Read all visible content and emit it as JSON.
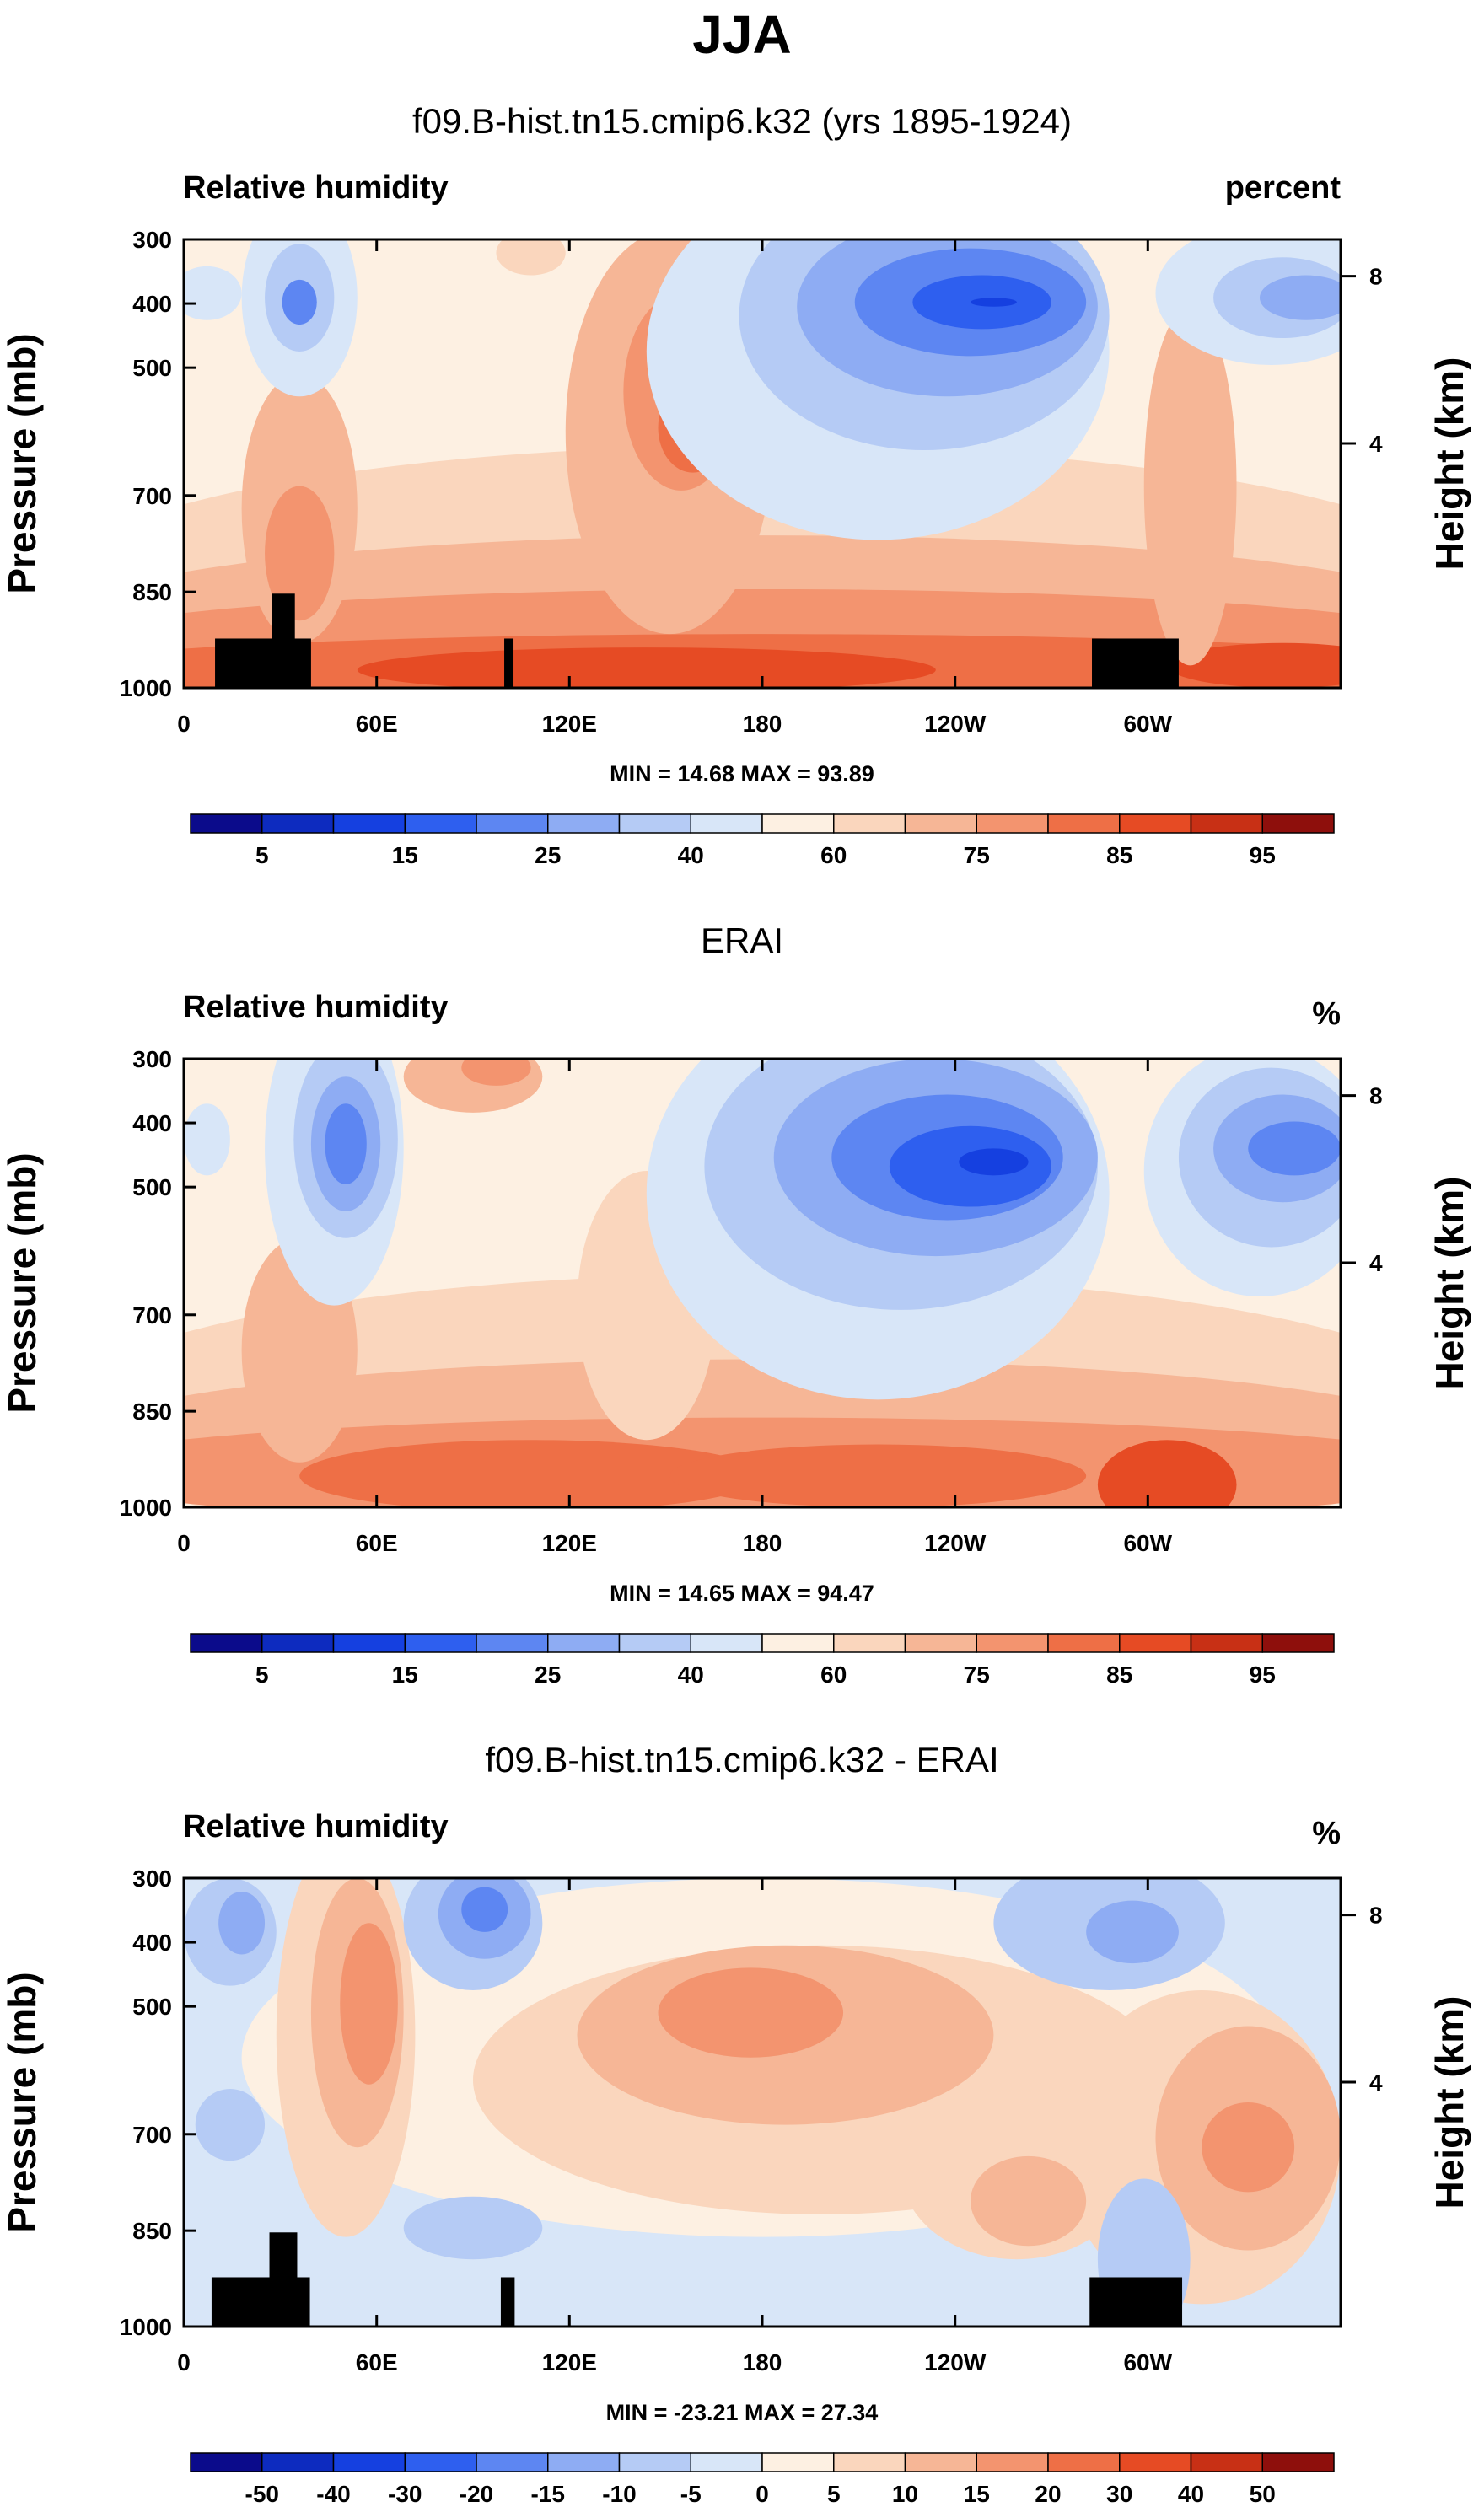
{
  "main_title": "JJA",
  "colors": {
    "rh_levels": [
      "#0b0b8b",
      "#0d2bbf",
      "#1540e0",
      "#2e5fef",
      "#5d86f2",
      "#8eacf3",
      "#b5cbf5",
      "#d8e6f8",
      "#fdf0e2",
      "#fad6bd",
      "#f6b696",
      "#f3946f",
      "#ee6f46",
      "#e64b24",
      "#c83015",
      "#8e0f0c"
    ],
    "land": "#000000",
    "frame": "#000000"
  },
  "chart_data": [
    {
      "type": "heatmap",
      "panel_title": "f09.B-hist.tn15.cmip6.k32 (yrs 1895-1924)",
      "variable_label": "Relative humidity",
      "units_label": "percent",
      "xlabel": "",
      "ylabel": "Pressure (mb)",
      "y2label": "Height (km)",
      "x_ticks": [
        "0",
        "60E",
        "120E",
        "180",
        "120W",
        "60W"
      ],
      "y_ticks": [
        "300",
        "400",
        "500",
        "700",
        "850",
        "1000"
      ],
      "y2_ticks": [
        "8",
        "4"
      ],
      "stats": "MIN =  14.68   MAX =  93.89",
      "colorbar_labels": [
        "5",
        "15",
        "25",
        "40",
        "60",
        "75",
        "85",
        "95"
      ],
      "colorbar_levels": 16
    },
    {
      "type": "heatmap",
      "panel_title": "ERAI",
      "variable_label": "Relative humidity",
      "units_label": "%",
      "xlabel": "",
      "ylabel": "Pressure (mb)",
      "y2label": "Height (km)",
      "x_ticks": [
        "0",
        "60E",
        "120E",
        "180",
        "120W",
        "60W"
      ],
      "y_ticks": [
        "300",
        "400",
        "500",
        "700",
        "850",
        "1000"
      ],
      "y2_ticks": [
        "8",
        "4"
      ],
      "stats": "MIN =  14.65   MAX =  94.47",
      "colorbar_labels": [
        "5",
        "15",
        "25",
        "40",
        "60",
        "75",
        "85",
        "95"
      ],
      "colorbar_levels": 16
    },
    {
      "type": "heatmap",
      "panel_title": "f09.B-hist.tn15.cmip6.k32 - ERAI",
      "variable_label": "Relative humidity",
      "units_label": "%",
      "xlabel": "",
      "ylabel": "Pressure (mb)",
      "y2label": "Height (km)",
      "x_ticks": [
        "0",
        "60E",
        "120E",
        "180",
        "120W",
        "60W"
      ],
      "y_ticks": [
        "300",
        "400",
        "500",
        "700",
        "850",
        "1000"
      ],
      "y2_ticks": [
        "8",
        "4"
      ],
      "stats": "MIN = -23.21   MAX =  27.34",
      "colorbar_labels": [
        "-50",
        "-40",
        "-30",
        "-20",
        "-15",
        "-10",
        "-5",
        "0",
        "5",
        "10",
        "15",
        "20",
        "30",
        "40",
        "50"
      ],
      "colorbar_levels": 16
    }
  ]
}
